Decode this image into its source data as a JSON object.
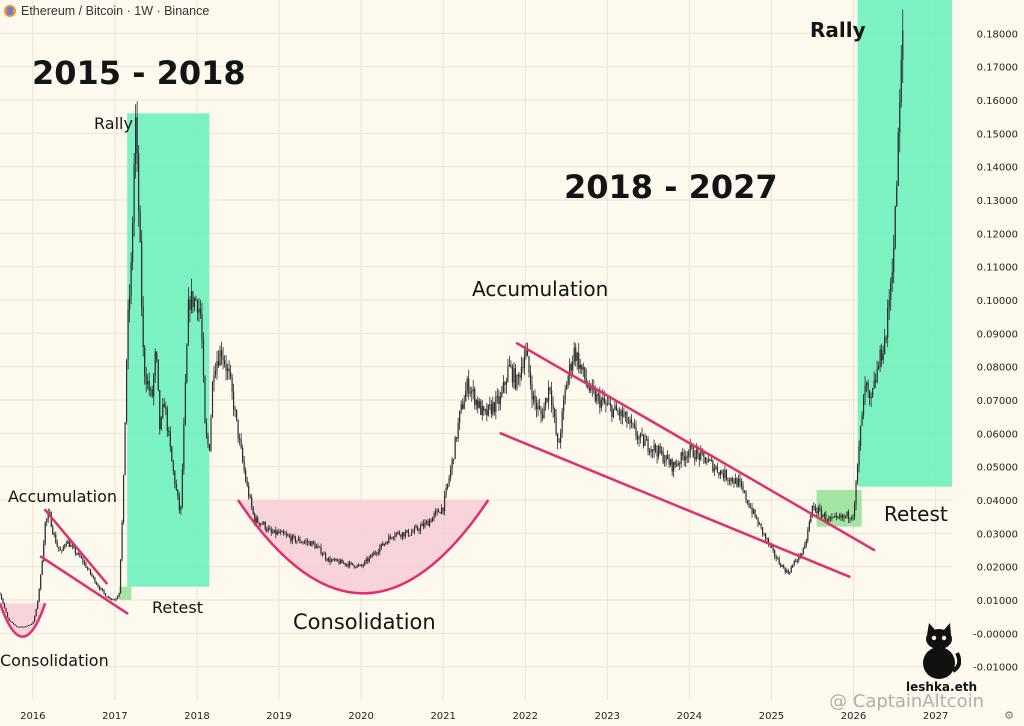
{
  "header": {
    "pair": "Ethereum / Bitcoin",
    "interval": "1W",
    "exchange": "Binance",
    "separator": " · ",
    "title": "Ethereum / Bitcoin · 1W · Binance"
  },
  "annotations": {
    "period1": "2015 - 2018",
    "period2": "2018 - 2027",
    "rally1": "Rally",
    "rally2": "Rally",
    "accumulation1": "Accumulation",
    "accumulation2": "Accumulation",
    "consolidation1": "Consolidation",
    "consolidation2": "Consolidation",
    "retest1": "Retest",
    "retest2": "Retest"
  },
  "watermark": "@ CaptainAltcoin",
  "signature": "leshka.eth",
  "colors": {
    "background": "#fdf9ef",
    "candle": "#2b2b2b",
    "rally_zone": "#6ef0bd",
    "retest_zone": "#9be29a",
    "consolidation_zone": "#f8cdd6",
    "trendline": "#e0306a",
    "grid": "#ece4d4"
  },
  "chart_data": {
    "type": "line",
    "title": "Ethereum / Bitcoin · 1W · Binance",
    "xlabel": "",
    "ylabel": "",
    "y_scale": "linear",
    "ylim": [
      -0.02,
      0.19
    ],
    "xlim": [
      2015.6,
      2027.2
    ],
    "grid": true,
    "x_ticks": [
      "2016",
      "2017",
      "2018",
      "2019",
      "2020",
      "2021",
      "2022",
      "2023",
      "2024",
      "2025",
      "2026",
      "2027"
    ],
    "y_ticks": [
      "-0.01000",
      "-0.00000",
      "0.01000",
      "0.02000",
      "0.03000",
      "0.04000",
      "0.05000",
      "0.06000",
      "0.07000",
      "0.08000",
      "0.09000",
      "0.10000",
      "0.11000",
      "0.12000",
      "0.13000",
      "0.14000",
      "0.15000",
      "0.16000",
      "0.17000",
      "0.18000"
    ],
    "series": [
      {
        "x": [
          2015.6,
          2015.7,
          2015.8,
          2015.9,
          2016.0,
          2016.05,
          2016.1,
          2016.15,
          2016.2,
          2016.25,
          2016.3,
          2016.35,
          2016.4,
          2016.5,
          2016.6,
          2016.7,
          2016.8,
          2016.9,
          2017.0,
          2017.05,
          2017.1,
          2017.15,
          2017.2,
          2017.25,
          2017.3,
          2017.35,
          2017.4,
          2017.45,
          2017.5,
          2017.55,
          2017.6,
          2017.7,
          2017.8,
          2017.9,
          2018.0,
          2018.05,
          2018.1,
          2018.15,
          2018.2,
          2018.3,
          2018.4,
          2018.5,
          2018.6,
          2018.7,
          2018.8,
          2018.9,
          2019.0,
          2019.2,
          2019.4,
          2019.5,
          2019.6,
          2019.8,
          2020.0,
          2020.2,
          2020.4,
          2020.6,
          2020.8,
          2021.0,
          2021.1,
          2021.2,
          2021.3,
          2021.4,
          2021.5,
          2021.6,
          2021.7,
          2021.8,
          2021.9,
          2022.0,
          2022.1,
          2022.2,
          2022.3,
          2022.4,
          2022.5,
          2022.6,
          2022.7,
          2022.8,
          2022.9,
          2023.0,
          2023.2,
          2023.4,
          2023.6,
          2023.8,
          2024.0,
          2024.2,
          2024.4,
          2024.6,
          2024.8,
          2025.0,
          2025.1,
          2025.2,
          2025.3,
          2025.4,
          2025.5,
          2025.6,
          2025.7,
          2025.8,
          2025.9,
          2026.0,
          2026.05,
          2026.1,
          2026.15,
          2026.2,
          2026.3,
          2026.4,
          2026.5,
          2026.55,
          2026.6
        ],
        "values": [
          0.012,
          0.004,
          0.002,
          0.002,
          0.003,
          0.008,
          0.018,
          0.033,
          0.036,
          0.03,
          0.026,
          0.024,
          0.028,
          0.025,
          0.022,
          0.018,
          0.014,
          0.011,
          0.01,
          0.012,
          0.04,
          0.09,
          0.11,
          0.155,
          0.12,
          0.08,
          0.075,
          0.07,
          0.085,
          0.06,
          0.07,
          0.05,
          0.035,
          0.1,
          0.1,
          0.095,
          0.06,
          0.055,
          0.08,
          0.085,
          0.076,
          0.06,
          0.045,
          0.034,
          0.033,
          0.03,
          0.03,
          0.028,
          0.027,
          0.025,
          0.022,
          0.021,
          0.02,
          0.025,
          0.03,
          0.03,
          0.033,
          0.038,
          0.05,
          0.065,
          0.075,
          0.07,
          0.065,
          0.068,
          0.07,
          0.08,
          0.075,
          0.085,
          0.07,
          0.065,
          0.075,
          0.055,
          0.075,
          0.085,
          0.078,
          0.072,
          0.07,
          0.068,
          0.065,
          0.058,
          0.055,
          0.05,
          0.055,
          0.052,
          0.048,
          0.045,
          0.035,
          0.025,
          0.021,
          0.018,
          0.022,
          0.025,
          0.038,
          0.036,
          0.034,
          0.034,
          0.035,
          0.036,
          0.05,
          0.065,
          0.075,
          0.068,
          0.08,
          0.09,
          0.12,
          0.15,
          0.18
        ]
      }
    ],
    "zones": [
      {
        "name": "rally-zone-1",
        "kind": "rally",
        "x": [
          2017.15,
          2018.15
        ],
        "y": [
          0.014,
          0.156
        ]
      },
      {
        "name": "rally-zone-2",
        "kind": "rally",
        "x": [
          2026.05,
          2027.2
        ],
        "y": [
          0.044,
          0.19
        ]
      },
      {
        "name": "retest-zone-1",
        "kind": "retest",
        "x": [
          2017.05,
          2017.2
        ],
        "y": [
          0.01,
          0.014
        ]
      },
      {
        "name": "retest-zone-2",
        "kind": "retest",
        "x": [
          2025.55,
          2026.1
        ],
        "y": [
          0.032,
          0.043
        ]
      },
      {
        "name": "consolidation-zone-1",
        "kind": "consolidation",
        "x": [
          2015.6,
          2016.15
        ],
        "y": [
          -0.001,
          0.009
        ]
      },
      {
        "name": "consolidation-zone-2",
        "kind": "consolidation",
        "x": [
          2018.5,
          2021.55
        ],
        "y": [
          0.012,
          0.04
        ]
      }
    ],
    "trendlines": [
      {
        "name": "accumulation-upper-1",
        "x": [
          2016.15,
          2016.9
        ],
        "y": [
          0.037,
          0.015
        ]
      },
      {
        "name": "accumulation-lower-1",
        "x": [
          2016.1,
          2017.15
        ],
        "y": [
          0.023,
          0.006
        ]
      },
      {
        "name": "accumulation-upper-2",
        "x": [
          2021.9,
          2026.25
        ],
        "y": [
          0.087,
          0.025
        ]
      },
      {
        "name": "accumulation-lower-2",
        "x": [
          2021.7,
          2025.95
        ],
        "y": [
          0.06,
          0.017
        ]
      }
    ]
  }
}
